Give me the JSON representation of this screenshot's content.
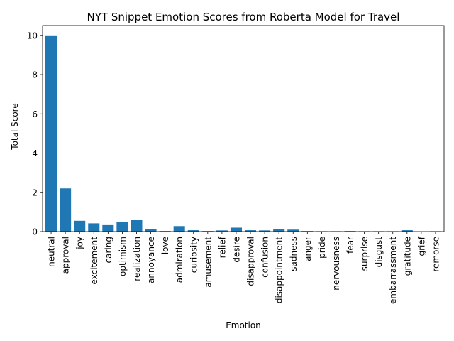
{
  "chart_data": {
    "type": "bar",
    "title": "NYT Snippet Emotion Scores from Roberta Model for Travel",
    "xlabel": "Emotion",
    "ylabel": "Total Score",
    "ylim": [
      0,
      10.5
    ],
    "yticks": [
      0,
      2,
      4,
      6,
      8,
      10
    ],
    "grid": false,
    "bar_color": "#1f77b4",
    "categories": [
      "neutral",
      "approval",
      "joy",
      "excitement",
      "caring",
      "optimism",
      "realization",
      "annoyance",
      "love",
      "admiration",
      "curiosity",
      "amusement",
      "relief",
      "desire",
      "disapproval",
      "confusion",
      "disappointment",
      "sadness",
      "anger",
      "pride",
      "nervousness",
      "fear",
      "surprise",
      "disgust",
      "embarrassment",
      "gratitude",
      "grief",
      "remorse"
    ],
    "values": [
      10.0,
      2.2,
      0.55,
      0.42,
      0.33,
      0.5,
      0.6,
      0.13,
      0.03,
      0.28,
      0.07,
      0.03,
      0.06,
      0.2,
      0.07,
      0.06,
      0.13,
      0.1,
      0.03,
      0.02,
      0.02,
      0.03,
      0.02,
      0.02,
      0.02,
      0.07,
      0.0,
      0.02
    ]
  }
}
